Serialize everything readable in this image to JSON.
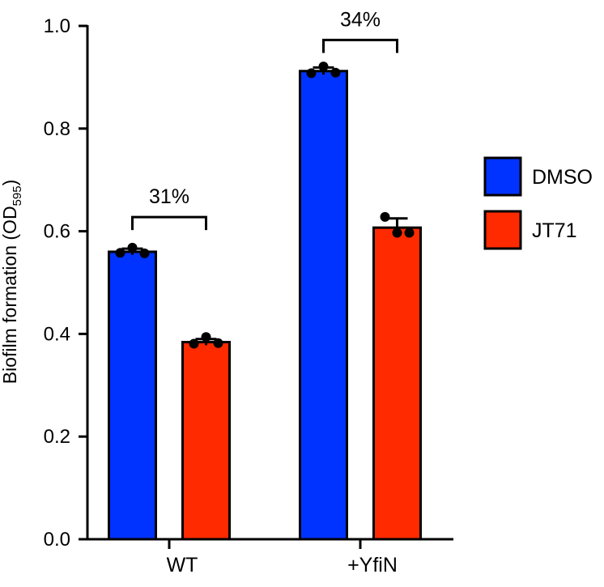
{
  "chart_data": {
    "type": "bar",
    "categories": [
      "WT",
      "+YfiN"
    ],
    "series": [
      {
        "name": "DMSO",
        "color": "#0033ff",
        "values": [
          0.56,
          0.912
        ],
        "error": [
          0.006,
          0.007
        ],
        "points": [
          [
            0.558,
            0.568,
            0.557
          ],
          [
            0.908,
            0.921,
            0.909
          ]
        ]
      },
      {
        "name": "JT71",
        "color": "#ff2a00",
        "values": [
          0.384,
          0.607
        ],
        "error": [
          0.006,
          0.018
        ],
        "points": [
          [
            0.381,
            0.394,
            0.382
          ],
          [
            0.628,
            0.597,
            0.597
          ]
        ]
      }
    ],
    "ylabel_main": "Biofilm formation (OD",
    "ylabel_sub": "595",
    "ylabel_close": ")",
    "ylim": [
      0,
      1.0
    ],
    "yticks": [
      "0.0",
      "0.2",
      "0.4",
      "0.6",
      "0.8",
      "1.0"
    ],
    "annotations": [
      {
        "group": 0,
        "text": "31%"
      },
      {
        "group": 1,
        "text": "34%"
      }
    ],
    "legend_position": "right"
  }
}
